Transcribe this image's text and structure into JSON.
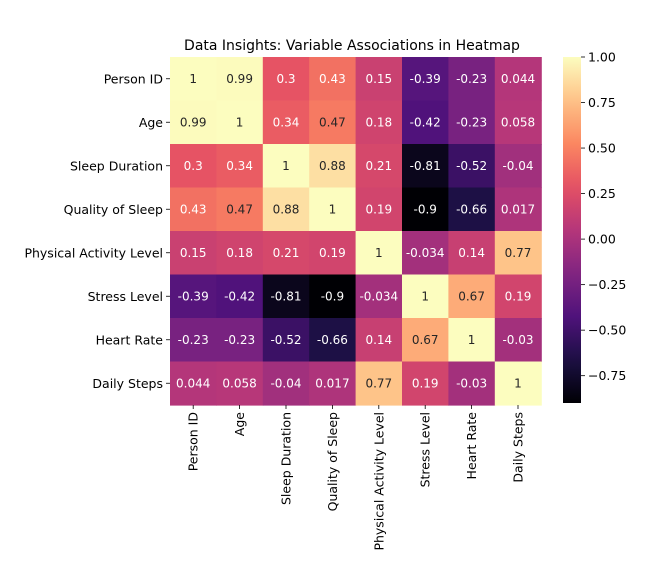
{
  "chart_data": {
    "type": "heatmap",
    "title": "Data Insights: Variable Associations in Heatmap",
    "xlabel": "",
    "ylabel": "",
    "variables": [
      "Person ID",
      "Age",
      "Sleep Duration",
      "Quality of Sleep",
      "Physical Activity Level",
      "Stress Level",
      "Heart Rate",
      "Daily Steps"
    ],
    "values": [
      [
        1,
        0.99,
        0.3,
        0.43,
        0.15,
        -0.39,
        -0.23,
        0.044
      ],
      [
        0.99,
        1,
        0.34,
        0.47,
        0.18,
        -0.42,
        -0.23,
        0.058
      ],
      [
        0.3,
        0.34,
        1,
        0.88,
        0.21,
        -0.81,
        -0.52,
        -0.04
      ],
      [
        0.43,
        0.47,
        0.88,
        1,
        0.19,
        -0.9,
        -0.66,
        0.017
      ],
      [
        0.15,
        0.18,
        0.21,
        0.19,
        1,
        -0.034,
        0.14,
        0.77
      ],
      [
        -0.39,
        -0.42,
        -0.81,
        -0.9,
        -0.034,
        1,
        0.67,
        0.19
      ],
      [
        -0.23,
        -0.23,
        -0.52,
        -0.66,
        0.14,
        0.67,
        1,
        -0.03
      ],
      [
        0.044,
        0.058,
        -0.04,
        0.017,
        0.77,
        0.19,
        -0.03,
        1
      ]
    ],
    "colormap": "magma",
    "color_range": [
      -0.9,
      1
    ],
    "colorbar_ticks": [
      1.0,
      0.75,
      0.5,
      0.25,
      0.0,
      -0.25,
      -0.5,
      -0.75
    ],
    "colorbar_tick_labels": [
      "1.00",
      "0.75",
      "0.50",
      "0.25",
      "0.00",
      "−0.25",
      "−0.50",
      "−0.75"
    ],
    "annotated": true,
    "grid": false
  }
}
